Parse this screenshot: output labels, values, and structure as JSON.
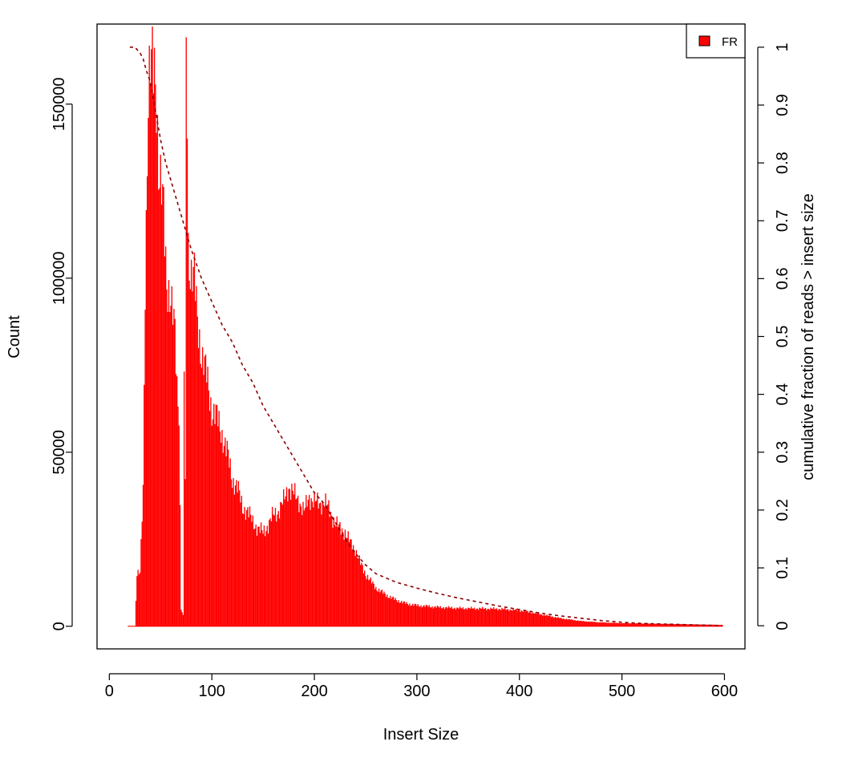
{
  "chart_data": {
    "type": "bar",
    "xlabel": "Insert Size",
    "ylabel": "Count",
    "y2label": "cumulative fraction of reads > insert size",
    "xlim": [
      -12,
      620
    ],
    "ylim": [
      -6500,
      173000
    ],
    "y2lim": [
      -0.04,
      1.04
    ],
    "x_ticks": [
      0,
      100,
      200,
      300,
      400,
      500,
      600
    ],
    "x_tick_labels": [
      "0",
      "100",
      "200",
      "300",
      "400",
      "500",
      "600"
    ],
    "y_ticks": [
      0,
      50000,
      100000,
      150000
    ],
    "y_tick_labels": [
      "0",
      "50000",
      "100000",
      "150000"
    ],
    "y2_ticks": [
      0,
      0.1,
      0.2,
      0.3,
      0.4,
      0.5,
      0.6,
      0.7,
      0.8,
      0.9,
      1
    ],
    "y2_tick_labels": [
      "0",
      "0.1",
      "0.2",
      "0.3",
      "0.4",
      "0.5",
      "0.6",
      "0.7",
      "0.8",
      "0.9",
      "1"
    ],
    "legend": {
      "position": "top-right",
      "entries": [
        {
          "label": "FR",
          "color": "#ff0000"
        }
      ]
    },
    "grid": false,
    "colors": {
      "bars": "#ff0000",
      "cumulative_line": "#8b0000",
      "axes": "#000000"
    },
    "series": [
      {
        "name": "FR",
        "kind": "histogram",
        "anchors_x": [
          18,
          25,
          27,
          30,
          33,
          35,
          38,
          40,
          42,
          44,
          46,
          48,
          50,
          53,
          56,
          60,
          64,
          66,
          68,
          70,
          72,
          73,
          74,
          75,
          76,
          77,
          78,
          80,
          83,
          86,
          90,
          95,
          100,
          105,
          110,
          115,
          120,
          125,
          130,
          135,
          140,
          145,
          150,
          155,
          160,
          165,
          170,
          175,
          180,
          185,
          190,
          195,
          200,
          205,
          210,
          215,
          220,
          225,
          230,
          235,
          240,
          245,
          250,
          255,
          260,
          270,
          280,
          290,
          300,
          320,
          340,
          360,
          380,
          400,
          420,
          440,
          460,
          480,
          500,
          520,
          540,
          560,
          580,
          598
        ],
        "anchors_y": [
          0,
          0,
          15000,
          15000,
          40000,
          100000,
          150000,
          158000,
          162000,
          163000,
          155000,
          130000,
          125000,
          120000,
          100000,
          92000,
          85000,
          70000,
          62000,
          5000,
          3000,
          75000,
          40000,
          165000,
          150000,
          110000,
          105000,
          101000,
          100000,
          88000,
          78000,
          72000,
          62000,
          60000,
          55000,
          50000,
          42000,
          40000,
          34000,
          33000,
          30000,
          28000,
          27000,
          29000,
          32000,
          33000,
          36000,
          40000,
          38000,
          36000,
          33000,
          37000,
          36000,
          35000,
          36000,
          33000,
          30000,
          28000,
          27000,
          24000,
          22000,
          18000,
          15000,
          13000,
          11000,
          9000,
          7500,
          6500,
          6000,
          5500,
          5200,
          5100,
          5000,
          4600,
          3500,
          2300,
          1500,
          1100,
          900,
          800,
          700,
          600,
          500,
          400
        ]
      },
      {
        "name": "cumulative fraction of reads > insert size",
        "kind": "line",
        "x": [
          20,
          25,
          30,
          33,
          36,
          40,
          43,
          46,
          50,
          55,
          60,
          65,
          70,
          75,
          80,
          90,
          100,
          110,
          120,
          130,
          140,
          150,
          160,
          170,
          180,
          190,
          200,
          210,
          220,
          230,
          240,
          250,
          260,
          280,
          300,
          320,
          340,
          360,
          380,
          400,
          420,
          440,
          460,
          480,
          500,
          520,
          540,
          560,
          580,
          598
        ],
        "y": [
          1.0,
          1.0,
          0.99,
          0.98,
          0.96,
          0.94,
          0.91,
          0.88,
          0.84,
          0.8,
          0.77,
          0.74,
          0.71,
          0.68,
          0.65,
          0.6,
          0.56,
          0.52,
          0.49,
          0.45,
          0.42,
          0.38,
          0.35,
          0.32,
          0.29,
          0.26,
          0.23,
          0.21,
          0.18,
          0.15,
          0.125,
          0.105,
          0.09,
          0.075,
          0.065,
          0.056,
          0.048,
          0.041,
          0.034,
          0.028,
          0.022,
          0.017,
          0.013,
          0.009,
          0.006,
          0.004,
          0.003,
          0.002,
          0.001,
          0.0
        ]
      }
    ]
  }
}
